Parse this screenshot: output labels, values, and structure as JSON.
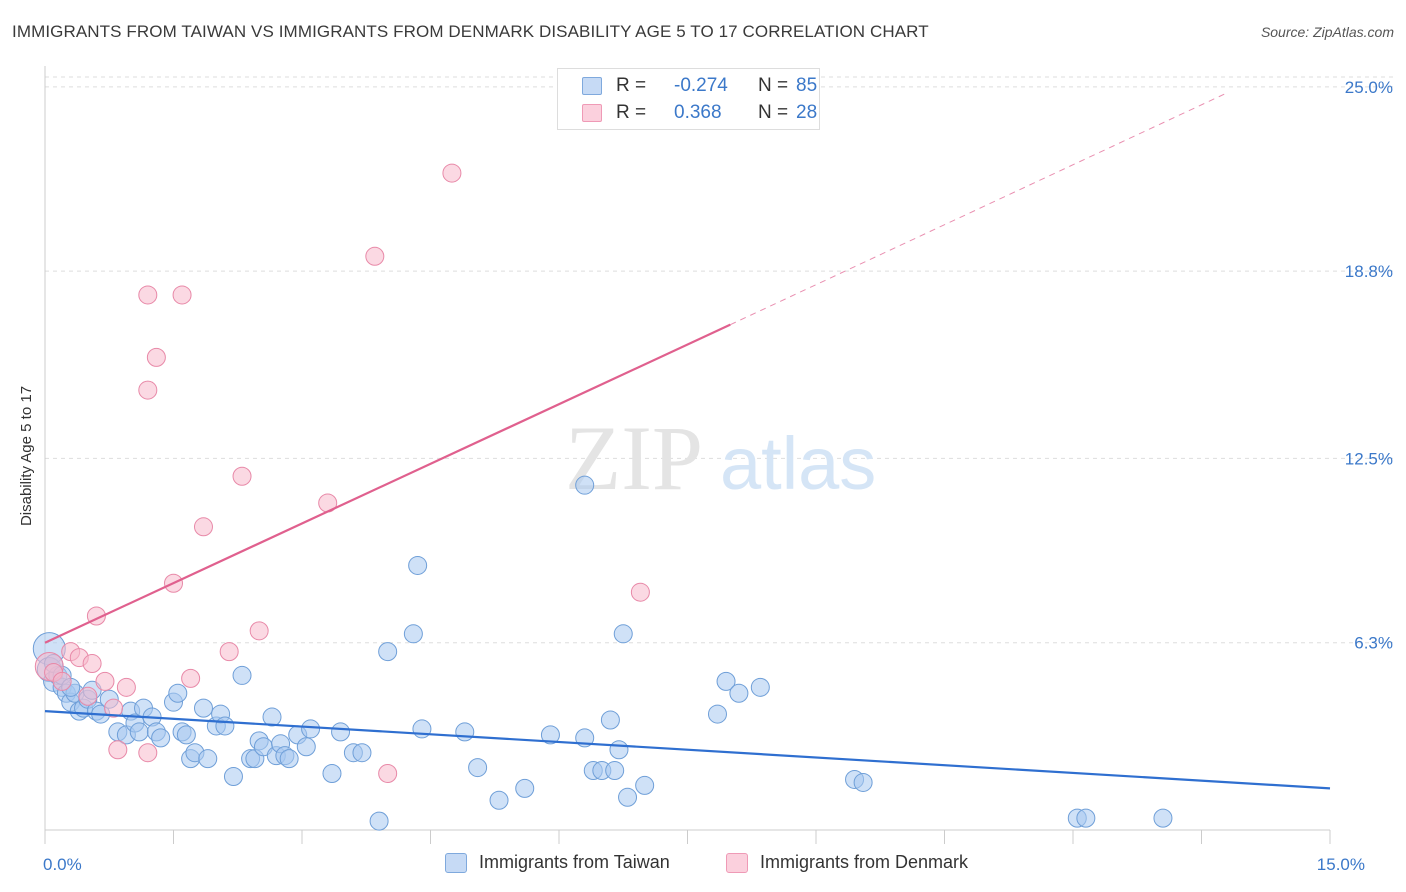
{
  "title": "IMMIGRANTS FROM TAIWAN VS IMMIGRANTS FROM DENMARK DISABILITY AGE 5 TO 17 CORRELATION CHART",
  "source": "Source: ZipAtlas.com",
  "watermark": {
    "zip": "ZIP",
    "atlas": "atlas"
  },
  "colors": {
    "taiwan_fill": "#a8c8f0",
    "taiwan_stroke": "#6f9fd8",
    "taiwan_line": "#2f6fd0",
    "denmark_fill": "#f7b9cc",
    "denmark_stroke": "#e889a8",
    "denmark_line": "#e0608e",
    "tick_label": "#3b78c9",
    "grid": "#dddddd"
  },
  "legend_top": {
    "taiwan": {
      "r_label": "R =",
      "r_value": "-0.274",
      "n_label": "N =",
      "n_value": "85"
    },
    "denmark": {
      "r_label": "R =",
      "r_value": "0.368",
      "n_label": "N =",
      "n_value": "28"
    }
  },
  "legend_bottom": {
    "taiwan": "Immigrants from Taiwan",
    "denmark": "Immigrants from Denmark"
  },
  "chart_data": {
    "type": "scatter",
    "title": "IMMIGRANTS FROM TAIWAN VS IMMIGRANTS FROM DENMARK DISABILITY AGE 5 TO 17 CORRELATION CHART",
    "xlabel": "",
    "ylabel": "Disability Age 5 to 17",
    "xlim": [
      0,
      15
    ],
    "ylim": [
      0,
      25.5
    ],
    "x_tick_labels": [
      {
        "value": 0,
        "label": "0.0%"
      },
      {
        "value": 15,
        "label": "15.0%"
      }
    ],
    "x_ticks": [
      0,
      1.5,
      3,
      4.5,
      6,
      7.5,
      9,
      10.5,
      12,
      13.5,
      15
    ],
    "y_ticks": [
      {
        "value": 6.3,
        "label": "6.3%"
      },
      {
        "value": 12.5,
        "label": "12.5%"
      },
      {
        "value": 18.8,
        "label": "18.8%"
      },
      {
        "value": 25.0,
        "label": "25.0%"
      }
    ],
    "grid": true,
    "series": [
      {
        "name": "Immigrants from Taiwan",
        "R": -0.274,
        "N": 85,
        "trend": {
          "x0": 0,
          "y0": 4.0,
          "x1": 15,
          "y1": 1.4
        },
        "points": [
          [
            0.05,
            6.1,
            16
          ],
          [
            0.05,
            5.4,
            12
          ],
          [
            0.1,
            5.0,
            10
          ],
          [
            0.15,
            5.2,
            9
          ],
          [
            0.2,
            4.8,
            9
          ],
          [
            0.25,
            4.6,
            9
          ],
          [
            0.3,
            4.3,
            9
          ],
          [
            0.35,
            4.6,
            9
          ],
          [
            0.4,
            4.0,
            9
          ],
          [
            0.45,
            4.1,
            9
          ],
          [
            0.5,
            4.4,
            9
          ],
          [
            0.55,
            4.7,
            9
          ],
          [
            0.6,
            4.0,
            9
          ],
          [
            0.65,
            3.9,
            9
          ],
          [
            0.75,
            4.4,
            9
          ],
          [
            0.85,
            3.3,
            9
          ],
          [
            0.95,
            3.2,
            9
          ],
          [
            1.0,
            4.0,
            9
          ],
          [
            1.05,
            3.6,
            9
          ],
          [
            1.1,
            3.3,
            9
          ],
          [
            1.15,
            4.1,
            9
          ],
          [
            1.25,
            3.8,
            9
          ],
          [
            1.3,
            3.3,
            9
          ],
          [
            1.35,
            3.1,
            9
          ],
          [
            1.5,
            4.3,
            9
          ],
          [
            1.55,
            4.6,
            9
          ],
          [
            1.6,
            3.3,
            9
          ],
          [
            1.65,
            3.2,
            9
          ],
          [
            1.7,
            2.4,
            9
          ],
          [
            1.75,
            2.6,
            9
          ],
          [
            1.85,
            4.1,
            9
          ],
          [
            1.9,
            2.4,
            9
          ],
          [
            2.0,
            3.5,
            9
          ],
          [
            2.05,
            3.9,
            9
          ],
          [
            2.1,
            3.5,
            9
          ],
          [
            2.2,
            1.8,
            9
          ],
          [
            2.3,
            5.2,
            9
          ],
          [
            2.4,
            2.4,
            9
          ],
          [
            2.45,
            2.4,
            9
          ],
          [
            2.5,
            3.0,
            9
          ],
          [
            2.55,
            2.8,
            9
          ],
          [
            2.65,
            3.8,
            9
          ],
          [
            2.7,
            2.5,
            9
          ],
          [
            2.75,
            2.9,
            9
          ],
          [
            2.8,
            2.5,
            9
          ],
          [
            2.85,
            2.4,
            9
          ],
          [
            2.95,
            3.2,
            9
          ],
          [
            3.05,
            2.8,
            9
          ],
          [
            3.1,
            3.4,
            9
          ],
          [
            3.35,
            1.9,
            9
          ],
          [
            3.45,
            3.3,
            9
          ],
          [
            3.6,
            2.6,
            9
          ],
          [
            3.7,
            2.6,
            9
          ],
          [
            3.9,
            0.3,
            9
          ],
          [
            4.0,
            6.0,
            9
          ],
          [
            4.35,
            8.9,
            9
          ],
          [
            4.3,
            6.6,
            9
          ],
          [
            4.4,
            3.4,
            9
          ],
          [
            4.9,
            3.3,
            9
          ],
          [
            5.05,
            2.1,
            9
          ],
          [
            5.3,
            1.0,
            9
          ],
          [
            5.6,
            1.4,
            9
          ],
          [
            5.9,
            3.2,
            9
          ],
          [
            6.3,
            11.6,
            9
          ],
          [
            6.3,
            3.1,
            9
          ],
          [
            6.4,
            2.0,
            9
          ],
          [
            6.5,
            2.0,
            9
          ],
          [
            6.6,
            3.7,
            9
          ],
          [
            6.65,
            2.0,
            9
          ],
          [
            6.7,
            2.7,
            9
          ],
          [
            6.75,
            6.6,
            9
          ],
          [
            6.8,
            1.1,
            9
          ],
          [
            7.0,
            1.5,
            9
          ],
          [
            7.85,
            3.9,
            9
          ],
          [
            7.95,
            5.0,
            9
          ],
          [
            8.1,
            4.6,
            9
          ],
          [
            8.35,
            4.8,
            9
          ],
          [
            9.45,
            1.7,
            9
          ],
          [
            9.55,
            1.6,
            9
          ],
          [
            12.05,
            0.4,
            9
          ],
          [
            12.15,
            0.4,
            9
          ],
          [
            13.05,
            0.4,
            9
          ],
          [
            0.1,
            5.6,
            9
          ],
          [
            0.2,
            5.2,
            9
          ],
          [
            0.3,
            4.8,
            9
          ]
        ]
      },
      {
        "name": "Immigrants from Denmark",
        "R": 0.368,
        "N": 28,
        "trend": {
          "x0": 0,
          "y0": 6.3,
          "x1": 8.0,
          "y1": 17.0
        },
        "trend_extended": {
          "x0": 8.0,
          "y0": 17.0,
          "x1": 13.8,
          "y1": 24.8
        },
        "points": [
          [
            0.05,
            5.5,
            14
          ],
          [
            0.1,
            5.3,
            9
          ],
          [
            0.2,
            5.0,
            9
          ],
          [
            0.3,
            6.0,
            9
          ],
          [
            0.4,
            5.8,
            9
          ],
          [
            0.5,
            4.5,
            9
          ],
          [
            0.55,
            5.6,
            9
          ],
          [
            0.6,
            7.2,
            9
          ],
          [
            0.7,
            5.0,
            9
          ],
          [
            0.8,
            4.1,
            9
          ],
          [
            0.85,
            2.7,
            9
          ],
          [
            0.95,
            4.8,
            9
          ],
          [
            1.2,
            2.6,
            9
          ],
          [
            1.2,
            14.8,
            9
          ],
          [
            1.3,
            15.9,
            9
          ],
          [
            1.2,
            18.0,
            9
          ],
          [
            1.6,
            18.0,
            9
          ],
          [
            1.5,
            8.3,
            9
          ],
          [
            1.7,
            5.1,
            9
          ],
          [
            1.85,
            10.2,
            9
          ],
          [
            2.15,
            6.0,
            9
          ],
          [
            2.3,
            11.9,
            9
          ],
          [
            2.5,
            6.7,
            9
          ],
          [
            3.3,
            11.0,
            9
          ],
          [
            3.85,
            19.3,
            9
          ],
          [
            4.0,
            1.9,
            9
          ],
          [
            4.75,
            22.1,
            9
          ],
          [
            6.95,
            8.0,
            9
          ]
        ]
      }
    ]
  }
}
